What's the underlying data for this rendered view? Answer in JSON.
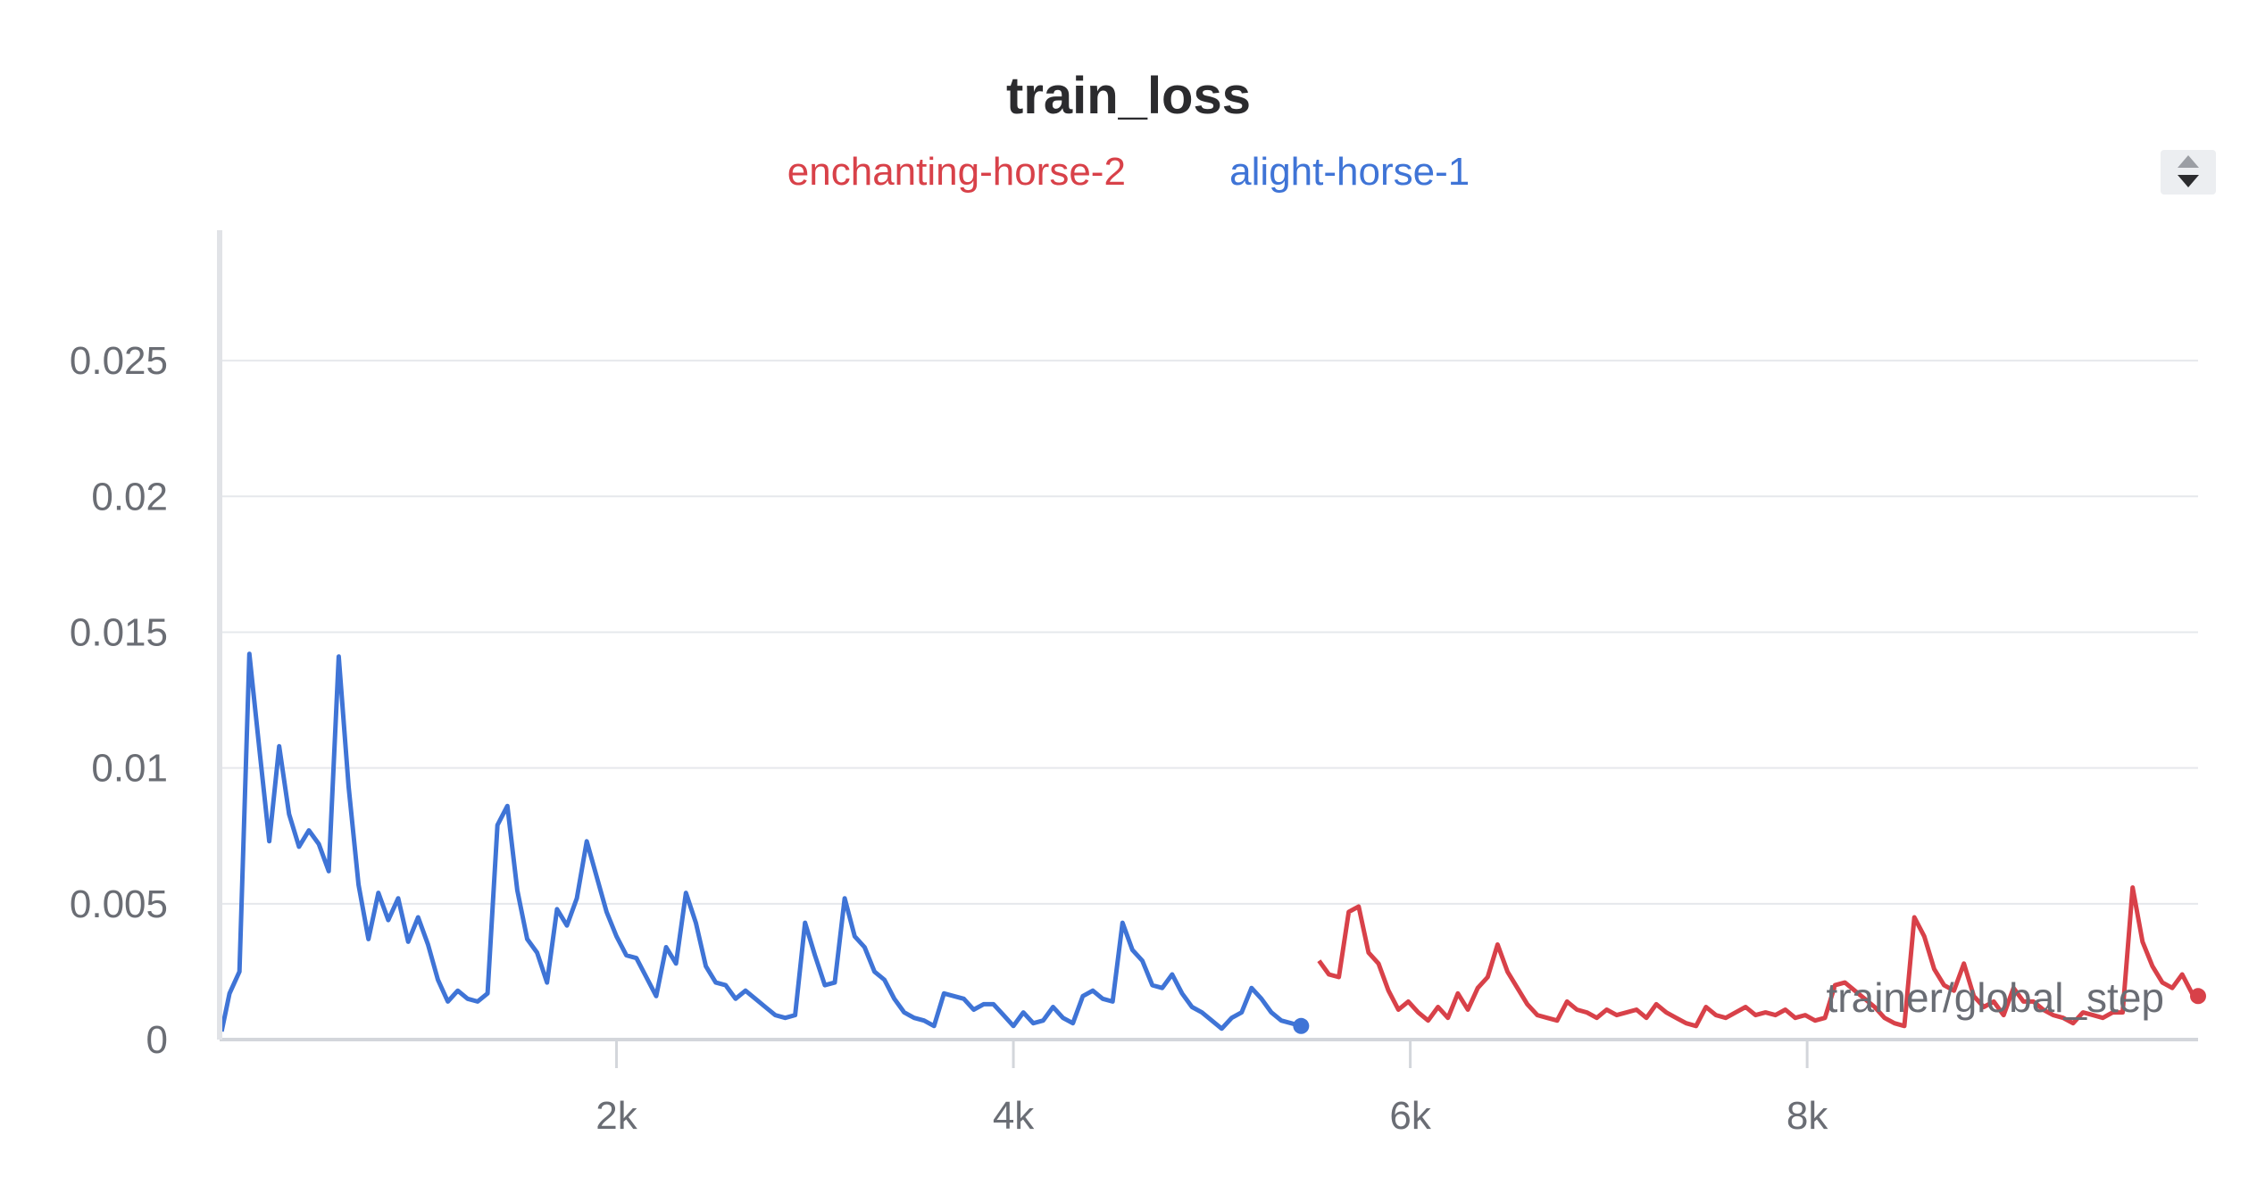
{
  "chart_data": {
    "type": "line",
    "title": "train_loss",
    "xlabel": "trainer/global_step",
    "ylabel": "",
    "xlim": [
      0,
      9970
    ],
    "ylim": [
      0,
      0.0298
    ],
    "x_ticks": [
      2000,
      4000,
      6000,
      8000
    ],
    "x_tick_labels": [
      "2k",
      "4k",
      "6k",
      "8k"
    ],
    "y_ticks": [
      0,
      0.005,
      0.01,
      0.015,
      0.02,
      0.025
    ],
    "y_tick_labels": [
      "0",
      "0.005",
      "0.01",
      "0.015",
      "0.02",
      "0.025"
    ],
    "grid": true,
    "legend_position": "top-center",
    "series": [
      {
        "name": "enchanting-horse-2",
        "color": "#d84149",
        "x": [
          5540,
          5590,
          5640,
          5690,
          5740,
          5790,
          5840,
          5890,
          5940,
          5990,
          6040,
          6090,
          6140,
          6190,
          6240,
          6290,
          6340,
          6390,
          6440,
          6490,
          6540,
          6590,
          6640,
          6690,
          6740,
          6790,
          6840,
          6890,
          6940,
          6990,
          7040,
          7090,
          7140,
          7190,
          7240,
          7290,
          7340,
          7390,
          7440,
          7490,
          7540,
          7590,
          7640,
          7690,
          7740,
          7790,
          7840,
          7890,
          7940,
          7990,
          8040,
          8090,
          8140,
          8190,
          8240,
          8290,
          8340,
          8390,
          8440,
          8490,
          8540,
          8590,
          8640,
          8690,
          8740,
          8790,
          8840,
          8890,
          8940,
          8990,
          9040,
          9090,
          9140,
          9190,
          9240,
          9290,
          9340,
          9390,
          9440,
          9490,
          9540,
          9590,
          9640,
          9690,
          9740,
          9790,
          9840,
          9890,
          9940,
          9970
        ],
        "values": [
          0.0029,
          0.0024,
          0.0023,
          0.0047,
          0.0049,
          0.0032,
          0.0028,
          0.0018,
          0.0011,
          0.0014,
          0.001,
          0.0007,
          0.0012,
          0.0008,
          0.0017,
          0.0011,
          0.0019,
          0.0023,
          0.0035,
          0.0025,
          0.0019,
          0.0013,
          0.0009,
          0.0008,
          0.0007,
          0.0014,
          0.0011,
          0.001,
          0.0008,
          0.0011,
          0.0009,
          0.001,
          0.0011,
          0.0008,
          0.0013,
          0.001,
          0.0008,
          0.0006,
          0.0005,
          0.0012,
          0.0009,
          0.0008,
          0.001,
          0.0012,
          0.0009,
          0.001,
          0.0009,
          0.0011,
          0.0008,
          0.0009,
          0.0007,
          0.0008,
          0.002,
          0.0021,
          0.0018,
          0.0015,
          0.0012,
          0.0008,
          0.0006,
          0.0005,
          0.0045,
          0.0038,
          0.0026,
          0.002,
          0.0018,
          0.0028,
          0.0016,
          0.0012,
          0.0014,
          0.0009,
          0.0019,
          0.0014,
          0.0014,
          0.0011,
          0.0009,
          0.0008,
          0.0006,
          0.001,
          0.0009,
          0.0008,
          0.001,
          0.001,
          0.0056,
          0.0036,
          0.0027,
          0.0021,
          0.0019,
          0.0024,
          0.0017,
          0.0016
        ]
      },
      {
        "name": "alight-horse-1",
        "color": "#3f74d6",
        "x": [
          10,
          50,
          100,
          150,
          200,
          250,
          300,
          350,
          400,
          450,
          500,
          550,
          600,
          650,
          700,
          750,
          800,
          850,
          900,
          950,
          1000,
          1050,
          1100,
          1150,
          1200,
          1250,
          1300,
          1350,
          1400,
          1450,
          1500,
          1550,
          1600,
          1650,
          1700,
          1750,
          1800,
          1850,
          1900,
          1950,
          2000,
          2050,
          2100,
          2150,
          2200,
          2250,
          2300,
          2350,
          2400,
          2450,
          2500,
          2550,
          2600,
          2650,
          2700,
          2750,
          2800,
          2850,
          2900,
          2950,
          3000,
          3050,
          3100,
          3150,
          3200,
          3250,
          3300,
          3350,
          3400,
          3450,
          3500,
          3550,
          3600,
          3650,
          3700,
          3750,
          3800,
          3850,
          3900,
          3950,
          4000,
          4050,
          4100,
          4150,
          4200,
          4250,
          4300,
          4350,
          4400,
          4450,
          4500,
          4550,
          4600,
          4650,
          4700,
          4750,
          4800,
          4850,
          4900,
          4950,
          5000,
          5050,
          5100,
          5150,
          5200,
          5250,
          5300,
          5350,
          5400,
          5450
        ],
        "values": [
          0.0003,
          0.0017,
          0.0025,
          0.0142,
          0.0107,
          0.0073,
          0.0108,
          0.0083,
          0.0071,
          0.0077,
          0.0072,
          0.0062,
          0.0141,
          0.0093,
          0.0057,
          0.0037,
          0.0054,
          0.0044,
          0.0052,
          0.0036,
          0.0045,
          0.0035,
          0.0022,
          0.0014,
          0.0018,
          0.0015,
          0.0014,
          0.0017,
          0.0079,
          0.0086,
          0.0055,
          0.0037,
          0.0032,
          0.0021,
          0.0048,
          0.0042,
          0.0052,
          0.0073,
          0.006,
          0.0047,
          0.0038,
          0.0031,
          0.003,
          0.0023,
          0.0016,
          0.0034,
          0.0028,
          0.0054,
          0.0043,
          0.0027,
          0.0021,
          0.002,
          0.0015,
          0.0018,
          0.0015,
          0.0012,
          0.0009,
          0.0008,
          0.0009,
          0.0043,
          0.0031,
          0.002,
          0.0021,
          0.0052,
          0.0038,
          0.0034,
          0.0025,
          0.0022,
          0.0015,
          0.001,
          0.0008,
          0.0007,
          0.0005,
          0.0017,
          0.0016,
          0.0015,
          0.0011,
          0.0013,
          0.0013,
          0.0009,
          0.0005,
          0.001,
          0.0006,
          0.0007,
          0.0012,
          0.0008,
          0.0006,
          0.0016,
          0.0018,
          0.0015,
          0.0014,
          0.0043,
          0.0033,
          0.0029,
          0.002,
          0.0019,
          0.0024,
          0.0017,
          0.0012,
          0.001,
          0.0007,
          0.0004,
          0.0008,
          0.001,
          0.0019,
          0.0015,
          0.001,
          0.0007,
          0.0006,
          0.0005
        ]
      }
    ]
  }
}
